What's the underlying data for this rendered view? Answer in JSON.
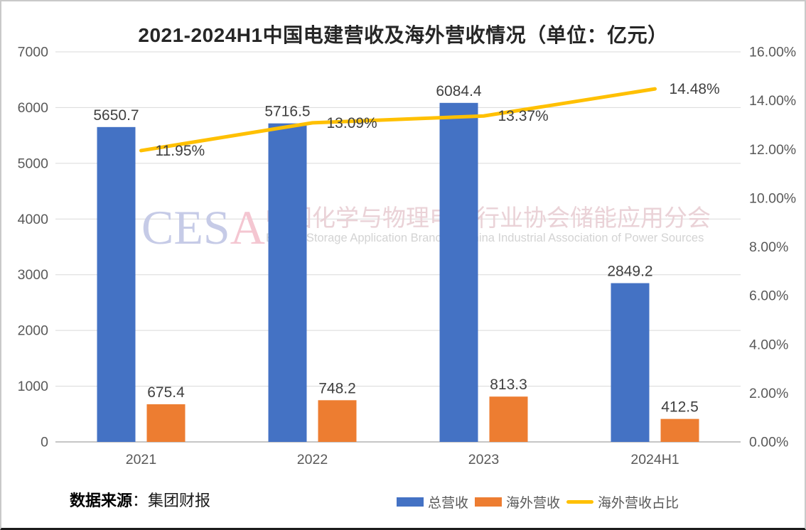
{
  "chart_data": {
    "type": "combo-bar-line",
    "title": "2021-2024H1中国电建营收及海外营收情况（单位：亿元）",
    "categories": [
      "2021",
      "2022",
      "2023",
      "2024H1"
    ],
    "series": [
      {
        "name": "总营收",
        "type": "bar",
        "axis": "left",
        "color": "#4472C4",
        "values": [
          5650.7,
          5716.5,
          6084.4,
          2849.2
        ],
        "labels": [
          "5650.7",
          "5716.5",
          "6084.4",
          "2849.2"
        ]
      },
      {
        "name": "海外营收",
        "type": "bar",
        "axis": "left",
        "color": "#ED7D31",
        "values": [
          675.4,
          748.2,
          813.3,
          412.5
        ],
        "labels": [
          "675.4",
          "748.2",
          "813.3",
          "412.5"
        ]
      },
      {
        "name": "海外营收占比",
        "type": "line",
        "axis": "right",
        "color": "#FFC000",
        "values": [
          11.95,
          13.09,
          13.37,
          14.48
        ],
        "labels": [
          "11.95%",
          "13.09%",
          "13.37%",
          "14.48%"
        ]
      }
    ],
    "left_axis": {
      "min": 0,
      "max": 7000,
      "tick_labels": [
        "7000",
        "6000",
        "5000",
        "4000",
        "3000",
        "2000",
        "1000",
        "0"
      ]
    },
    "right_axis": {
      "min": 0,
      "max": 16,
      "tick_labels": [
        "16.00%",
        "14.00%",
        "12.00%",
        "10.00%",
        "8.00%",
        "6.00%",
        "4.00%",
        "2.00%",
        "0.00%"
      ]
    },
    "grid": true,
    "legend_position": "bottom",
    "label_color": "#404040",
    "axis_label_color": "#595959",
    "gridline_color": "#d9d9d9"
  },
  "watermark": {
    "acronym_left": "CES",
    "acronym_right": "A",
    "cn_text": "中国化学与物理电源行业协会储能应用分会",
    "en_text": "Energy Storage Application Branch of China Industrial Association of Power Sources",
    "colors": {
      "acronym_left": "#c6cbe7",
      "acronym_right": "#f4c6d1",
      "cn": "#ead2d7",
      "en": "#d3d3d3"
    }
  },
  "source": {
    "prefix": "数据来源",
    "rest": "：集团财报"
  }
}
